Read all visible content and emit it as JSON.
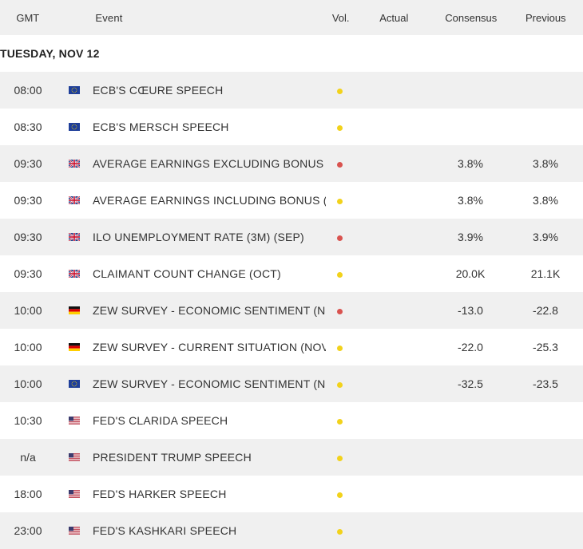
{
  "header": {
    "gmt": "GMT",
    "event": "Event",
    "vol": "Vol.",
    "actual": "Actual",
    "consensus": "Consensus",
    "previous": "Previous"
  },
  "date_label": "TUESDAY, NOV 12",
  "colors": {
    "vol_medium": "#f2d21b",
    "vol_high": "#d9534f",
    "row_shade": "#f0f0f0"
  },
  "events": [
    {
      "time": "08:00",
      "flag": "eu-flag-icon",
      "event": "ECB'S CŒURE SPEECH",
      "vol": "medium",
      "actual": "",
      "consensus": "",
      "previous": ""
    },
    {
      "time": "08:30",
      "flag": "eu-flag-icon",
      "event": "ECB'S MERSCH SPEECH",
      "vol": "medium",
      "actual": "",
      "consensus": "",
      "previous": ""
    },
    {
      "time": "09:30",
      "flag": "uk-flag-icon",
      "event": "AVERAGE EARNINGS EXCLUDING BONUS ...",
      "vol": "high",
      "actual": "",
      "consensus": "3.8%",
      "previous": "3.8%"
    },
    {
      "time": "09:30",
      "flag": "uk-flag-icon",
      "event": "AVERAGE EARNINGS INCLUDING BONUS (...",
      "vol": "medium",
      "actual": "",
      "consensus": "3.8%",
      "previous": "3.8%"
    },
    {
      "time": "09:30",
      "flag": "uk-flag-icon",
      "event": "ILO UNEMPLOYMENT RATE (3M) (SEP)",
      "vol": "high",
      "actual": "",
      "consensus": "3.9%",
      "previous": "3.9%"
    },
    {
      "time": "09:30",
      "flag": "uk-flag-icon",
      "event": "CLAIMANT COUNT CHANGE (OCT)",
      "vol": "medium",
      "actual": "",
      "consensus": "20.0K",
      "previous": "21.1K"
    },
    {
      "time": "10:00",
      "flag": "de-flag-icon",
      "event": "ZEW SURVEY - ECONOMIC SENTIMENT (N...",
      "vol": "high",
      "actual": "",
      "consensus": "-13.0",
      "previous": "-22.8"
    },
    {
      "time": "10:00",
      "flag": "de-flag-icon",
      "event": "ZEW SURVEY - CURRENT SITUATION (NOV)",
      "vol": "medium",
      "actual": "",
      "consensus": "-22.0",
      "previous": "-25.3"
    },
    {
      "time": "10:00",
      "flag": "eu-flag-icon",
      "event": "ZEW SURVEY - ECONOMIC SENTIMENT (N...",
      "vol": "medium",
      "actual": "",
      "consensus": "-32.5",
      "previous": "-23.5"
    },
    {
      "time": "10:30",
      "flag": "us-flag-icon",
      "event": "FED'S CLARIDA SPEECH",
      "vol": "medium",
      "actual": "",
      "consensus": "",
      "previous": ""
    },
    {
      "time": "n/a",
      "flag": "us-flag-icon",
      "event": "PRESIDENT TRUMP SPEECH",
      "vol": "medium",
      "actual": "",
      "consensus": "",
      "previous": ""
    },
    {
      "time": "18:00",
      "flag": "us-flag-icon",
      "event": "FED'S HARKER SPEECH",
      "vol": "medium",
      "actual": "",
      "consensus": "",
      "previous": ""
    },
    {
      "time": "23:00",
      "flag": "us-flag-icon",
      "event": "FED'S KASHKARI SPEECH",
      "vol": "medium",
      "actual": "",
      "consensus": "",
      "previous": ""
    }
  ]
}
